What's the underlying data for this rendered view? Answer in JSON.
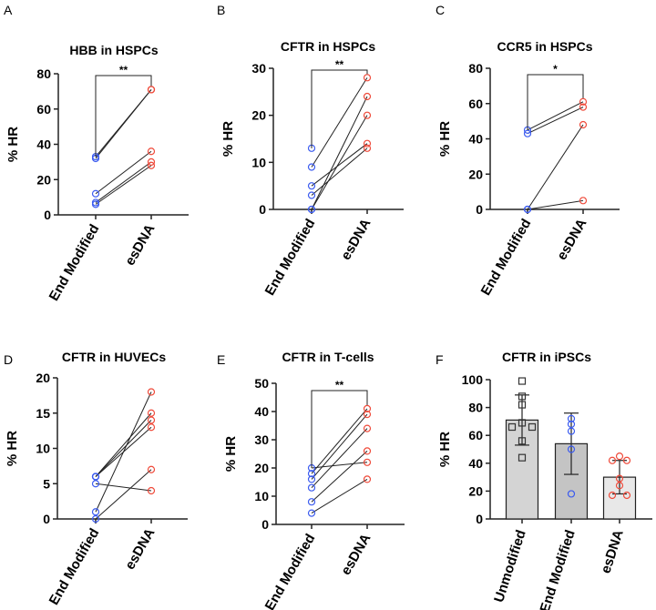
{
  "colors": {
    "end_modified": "#3b5bef",
    "esdna": "#ef4a3a",
    "unmodified": "#333333",
    "bar_unmodified": "#d4d4d4",
    "bar_end_modified": "#c4c4c4",
    "bar_esdna": "#e8e8e8"
  },
  "chart_data": [
    {
      "letter": "A",
      "type": "scatter",
      "title": "HBB in HSPCs",
      "ylabel": "% HR",
      "ylim": [
        0,
        80
      ],
      "yticks": [
        "0",
        "20",
        "40",
        "60",
        "80"
      ],
      "categories": [
        "End Modified",
        "esDNA"
      ],
      "significance": "**",
      "pairs": [
        [
          33,
          71
        ],
        [
          32,
          71
        ],
        [
          12,
          36
        ],
        [
          7,
          30
        ],
        [
          6,
          28
        ]
      ]
    },
    {
      "letter": "B",
      "type": "scatter",
      "title": "CFTR in HSPCs",
      "ylabel": "% HR",
      "ylim": [
        0,
        30
      ],
      "yticks": [
        "0",
        "10",
        "20",
        "30"
      ],
      "categories": [
        "End Modified",
        "esDNA"
      ],
      "significance": "**",
      "pairs": [
        [
          13,
          null
        ],
        [
          9,
          28
        ],
        [
          0,
          24
        ],
        [
          0,
          20
        ],
        [
          5,
          14
        ],
        [
          3,
          13
        ]
      ]
    },
    {
      "letter": "C",
      "type": "scatter",
      "title": "CCR5 in HSPCs",
      "ylabel": "% HR",
      "ylim": [
        0,
        80
      ],
      "yticks": [
        "0",
        "20",
        "40",
        "60",
        "80"
      ],
      "categories": [
        "End Modified",
        "esDNA"
      ],
      "significance": "*",
      "pairs": [
        [
          45,
          61
        ],
        [
          43,
          58
        ],
        [
          0,
          48
        ],
        [
          0,
          5
        ]
      ]
    },
    {
      "letter": "D",
      "type": "scatter",
      "title": "CFTR in HUVECs",
      "ylabel": "% HR",
      "ylim": [
        0,
        20
      ],
      "yticks": [
        "0",
        "5",
        "10",
        "15",
        "20"
      ],
      "categories": [
        "End Modified",
        "esDNA"
      ],
      "significance": "",
      "pairs": [
        [
          6,
          15
        ],
        [
          6,
          14
        ],
        [
          6,
          13
        ],
        [
          1,
          18
        ],
        [
          5,
          4
        ],
        [
          0,
          7
        ]
      ]
    },
    {
      "letter": "E",
      "type": "scatter",
      "title": "CFTR in T-cells",
      "ylabel": "% HR",
      "ylim": [
        0,
        50
      ],
      "yticks": [
        "0",
        "10",
        "20",
        "30",
        "40",
        "50"
      ],
      "categories": [
        "End Modified",
        "esDNA"
      ],
      "significance": "**",
      "pairs": [
        [
          20,
          22
        ],
        [
          18,
          41
        ],
        [
          16,
          39
        ],
        [
          13,
          34
        ],
        [
          8,
          26
        ],
        [
          4,
          16
        ]
      ]
    },
    {
      "letter": "F",
      "type": "bar",
      "title": "CFTR in iPSCs",
      "ylabel": "% HR",
      "ylim": [
        0,
        100
      ],
      "yticks": [
        "0",
        "20",
        "40",
        "60",
        "80",
        "100"
      ],
      "categories": [
        "Unmodified",
        "End Modified",
        "esDNA"
      ],
      "values": [
        71,
        54,
        30
      ],
      "errors": [
        18,
        22,
        12
      ],
      "points": [
        [
          99,
          88,
          82,
          69,
          66,
          66,
          56,
          44
        ],
        [
          72,
          68,
          63,
          50,
          18
        ],
        [
          45,
          42,
          42,
          29,
          24,
          17,
          17
        ]
      ]
    }
  ]
}
